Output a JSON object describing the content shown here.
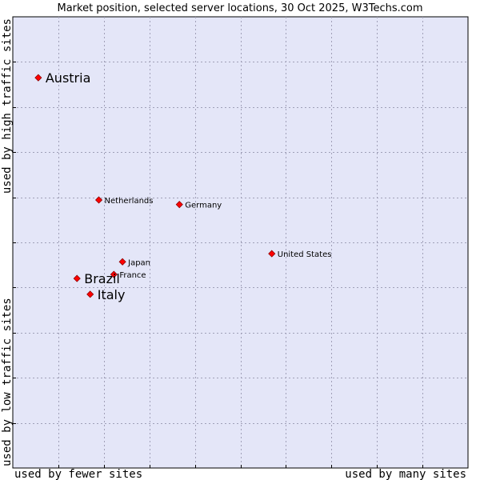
{
  "chart_data": {
    "type": "scatter",
    "title": "Market position, selected server locations, 30 Oct 2025, W3Techs.com",
    "xlabel_left": "used by fewer sites",
    "xlabel_right": "used by many sites",
    "ylabel_bottom": "used by low traffic sites",
    "ylabel_top": "used by high traffic sites",
    "xlim": [
      0,
      100
    ],
    "ylim": [
      0,
      100
    ],
    "grid": true,
    "plot_background": "#e4e6f8",
    "point_color": "#ff0000",
    "points": [
      {
        "name": "Austria",
        "x": 5.6,
        "y": 86.5,
        "emphasis": true
      },
      {
        "name": "Netherlands",
        "x": 18.9,
        "y": 59.4,
        "emphasis": false
      },
      {
        "name": "Germany",
        "x": 36.6,
        "y": 58.4,
        "emphasis": false
      },
      {
        "name": "United States",
        "x": 56.9,
        "y": 47.5,
        "emphasis": false
      },
      {
        "name": "Japan",
        "x": 24.1,
        "y": 45.7,
        "emphasis": false
      },
      {
        "name": "France",
        "x": 22.2,
        "y": 42.9,
        "emphasis": false
      },
      {
        "name": "Brazil",
        "x": 14.1,
        "y": 42.0,
        "emphasis": true
      },
      {
        "name": "Italy",
        "x": 17.0,
        "y": 38.5,
        "emphasis": true
      }
    ]
  }
}
